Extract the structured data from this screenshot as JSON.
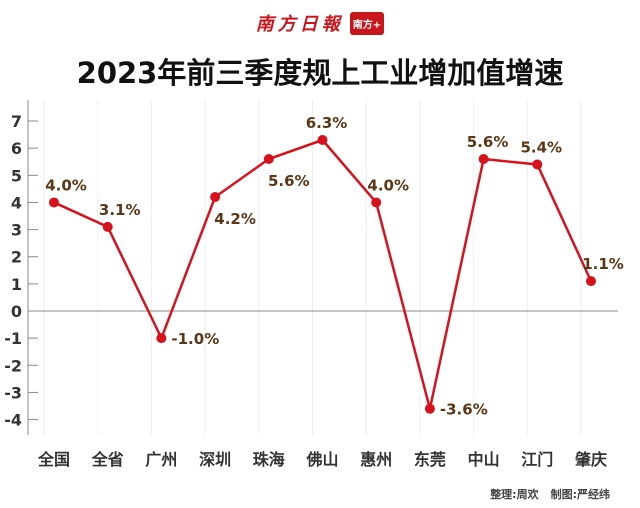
{
  "logo": {
    "text": "南方日報",
    "badge": "南方+"
  },
  "chart_data": {
    "type": "line",
    "title": "2023年前三季度规上工业增加值增速",
    "categories": [
      "全国",
      "全省",
      "广州",
      "深圳",
      "珠海",
      "佛山",
      "惠州",
      "东莞",
      "中山",
      "江门",
      "肇庆"
    ],
    "values": [
      4.0,
      3.1,
      -1.0,
      4.2,
      5.6,
      6.3,
      4.0,
      -3.6,
      5.6,
      5.4,
      1.1
    ],
    "data_labels": [
      "4.0%",
      "3.1%",
      "-1.0%",
      "4.2%",
      "5.6%",
      "6.3%",
      "4.0%",
      "-3.6%",
      "5.6%",
      "5.4%",
      "1.1%"
    ],
    "label_positions": [
      "above",
      "above",
      "right",
      "below",
      "below",
      "above",
      "above",
      "right",
      "above",
      "above",
      "above"
    ],
    "yticks": [
      7,
      6,
      5,
      4,
      3,
      2,
      1,
      0,
      -1,
      -2,
      -3,
      -4
    ],
    "ylim": [
      -4.3,
      7.6
    ],
    "xlabel": "",
    "ylabel": "",
    "grid": true,
    "colors": {
      "line": "#d7121c",
      "label": "#5a3716",
      "axis": "#888888"
    }
  },
  "credits": {
    "editor": "整理:周欢",
    "designer": "制图:严经纬"
  }
}
